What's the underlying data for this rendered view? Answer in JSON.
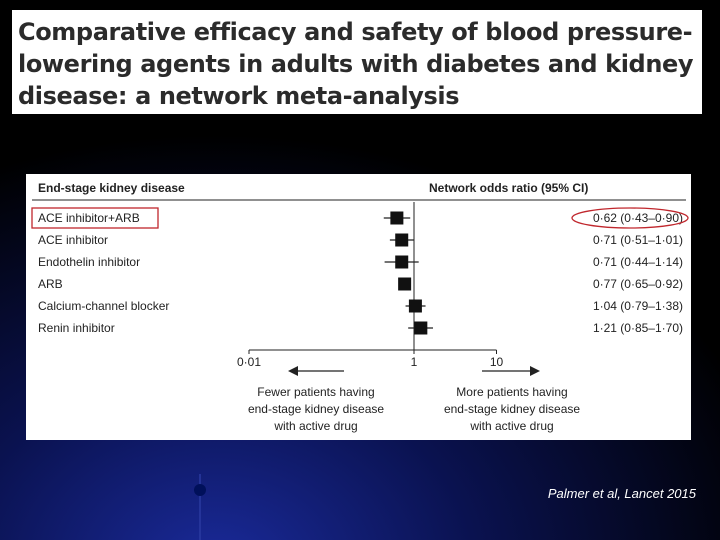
{
  "slide": {
    "title": "Comparative efficacy and safety of blood pressure-lowering agents in adults with diabetes and kidney disease: a network meta-analysis",
    "citation": "Palmer et al, Lancet 2015",
    "colors": {
      "background_dark": "#000000",
      "background_blue": "#1a2a9a",
      "highlight_box": "#c0272d"
    }
  },
  "chart_data": {
    "type": "forest",
    "title": "End-stage kidney disease",
    "value_header": "Network odds ratio (95% CI)",
    "x_scale": "log",
    "xlim": [
      0.01,
      10
    ],
    "reference_line": 1,
    "x_ticks": [
      "0·01",
      "1",
      "10"
    ],
    "x_tick_values": [
      0.01,
      1,
      10
    ],
    "rows": [
      {
        "label": "ACE inhibitor+ARB",
        "or": 0.62,
        "lo": 0.43,
        "hi": 0.9,
        "text": "0·62 (0·43–0·90)",
        "highlighted": true
      },
      {
        "label": "ACE inhibitor",
        "or": 0.71,
        "lo": 0.51,
        "hi": 1.01,
        "text": "0·71 (0·51–1·01)",
        "highlighted": false
      },
      {
        "label": "Endothelin inhibitor",
        "or": 0.71,
        "lo": 0.44,
        "hi": 1.14,
        "text": "0·71 (0·44–1·14)",
        "highlighted": false
      },
      {
        "label": "ARB",
        "or": 0.77,
        "lo": 0.65,
        "hi": 0.92,
        "text": "0·77 (0·65–0·92)",
        "highlighted": false
      },
      {
        "label": "Calcium-channel blocker",
        "or": 1.04,
        "lo": 0.79,
        "hi": 1.38,
        "text": "1·04 (0·79–1·38)",
        "highlighted": false
      },
      {
        "label": "Renin inhibitor",
        "or": 1.21,
        "lo": 0.85,
        "hi": 1.7,
        "text": "1·21 (0·85–1·70)",
        "highlighted": false
      }
    ],
    "left_annotation": [
      "Fewer patients having",
      "end-stage kidney disease",
      "with active drug"
    ],
    "right_annotation": [
      "More patients having",
      "end-stage kidney disease",
      "with active drug"
    ]
  }
}
